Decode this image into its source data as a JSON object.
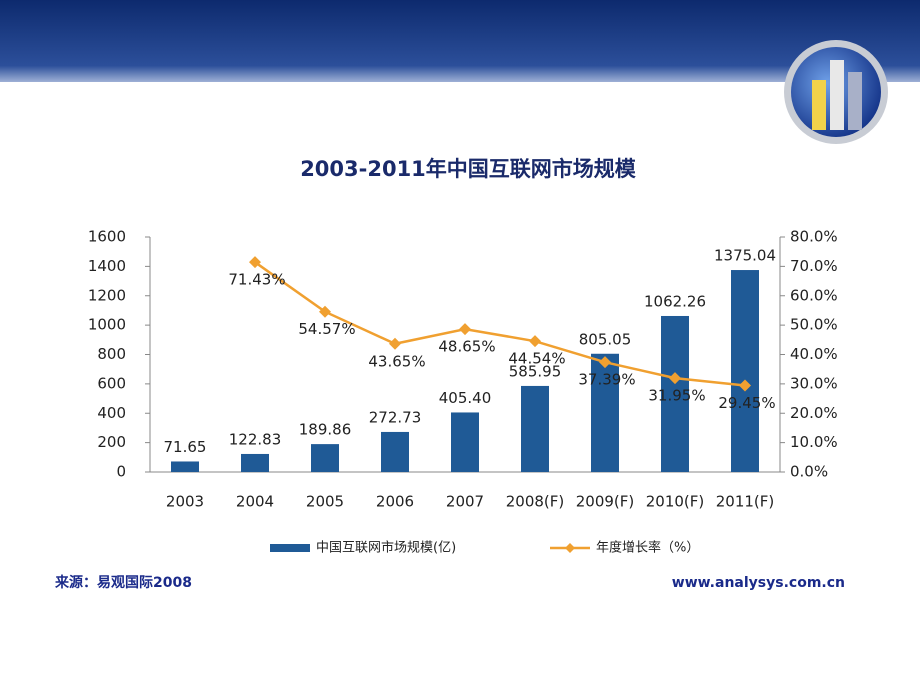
{
  "chart_data": {
    "type": "bar-line",
    "title": "2003-2011年中国互联网市场规模",
    "categories": [
      "2003",
      "2004",
      "2005",
      "2006",
      "2007",
      "2008(F)",
      "2009(F)",
      "2010(F)",
      "2011(F)"
    ],
    "series": [
      {
        "name": "中国互联网市场规模(亿)",
        "type": "bar",
        "color": "#1f5a96",
        "values": [
          71.65,
          122.83,
          189.86,
          272.73,
          405.4,
          585.95,
          805.05,
          1062.26,
          1375.04
        ],
        "value_labels": [
          "71.65",
          "122.83",
          "189.86",
          "272.73",
          "405.40",
          "585.95",
          "805.05",
          "1062.26",
          "1375.04"
        ]
      },
      {
        "name": "年度增长率（%）",
        "type": "line",
        "axis": "y2",
        "color": "#f0a030",
        "values": [
          null,
          71.43,
          54.57,
          43.65,
          48.65,
          44.54,
          37.39,
          31.95,
          29.45
        ],
        "value_labels": [
          null,
          "71.43%",
          "54.57%",
          "43.65%",
          "48.65%",
          "44.54%",
          "37.39%",
          "31.95%",
          "29.45%"
        ]
      }
    ],
    "ylim": [
      0,
      1600
    ],
    "yticks": [
      0,
      200,
      400,
      600,
      800,
      1000,
      1200,
      1400,
      1600
    ],
    "y2lim": [
      0,
      80
    ],
    "y2ticks": [
      {
        "value": 0,
        "label": "0.0%"
      },
      {
        "value": 10,
        "label": "10.0%"
      },
      {
        "value": 20,
        "label": "20.0%"
      },
      {
        "value": 30,
        "label": "30.0%"
      },
      {
        "value": 40,
        "label": "40.0%"
      },
      {
        "value": 50,
        "label": "50.0%"
      },
      {
        "value": 60,
        "label": "60.0%"
      },
      {
        "value": 70,
        "label": "70.0%"
      },
      {
        "value": 80,
        "label": "80.0%"
      }
    ],
    "source": "来源：易观国际2008",
    "website": "www.analysys.com.cn"
  }
}
